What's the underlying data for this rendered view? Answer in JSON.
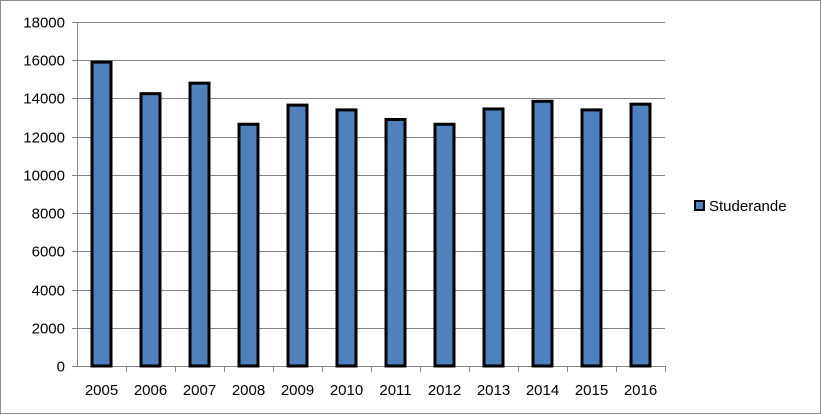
{
  "chart_data": {
    "type": "bar",
    "title": "",
    "xlabel": "",
    "ylabel": "",
    "categories": [
      "2005",
      "2006",
      "2007",
      "2008",
      "2009",
      "2010",
      "2011",
      "2012",
      "2013",
      "2014",
      "2015",
      "2016"
    ],
    "series": [
      {
        "name": "Studerande",
        "values": [
          15900,
          14250,
          14800,
          12650,
          13650,
          13400,
          12900,
          12650,
          13450,
          13850,
          13400,
          13700
        ],
        "color": "#4f81bd"
      }
    ],
    "ylim": [
      0,
      18000
    ],
    "yticks": [
      0,
      2000,
      4000,
      6000,
      8000,
      10000,
      12000,
      14000,
      16000,
      18000
    ],
    "grid": true,
    "legend_position": "right"
  }
}
